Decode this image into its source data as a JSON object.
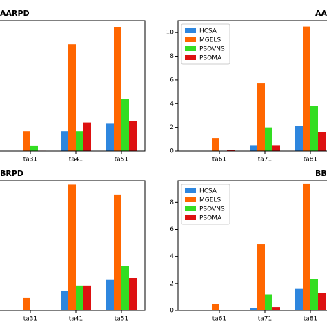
{
  "chart_data": [
    {
      "type": "bar",
      "title": "AARPD",
      "categories": [
        "ta31",
        "ta41",
        "ta51"
      ],
      "ylim": [
        0,
        10.5
      ],
      "series": [
        {
          "color": "#2e86de",
          "values": [
            0,
            1.6,
            2.2
          ]
        },
        {
          "color": "#ff6600",
          "values": [
            1.6,
            8.6,
            10
          ]
        },
        {
          "color": "#33dd22",
          "values": [
            0.45,
            1.6,
            4.2
          ]
        },
        {
          "color": "#dd1111",
          "values": [
            0.03,
            2.3,
            2.4
          ]
        }
      ]
    },
    {
      "type": "bar",
      "title": "AA",
      "categories": [
        "ta61",
        "ta71",
        "ta81"
      ],
      "ylim": [
        0,
        11
      ],
      "yticks": [
        0,
        2,
        4,
        6,
        8,
        10
      ],
      "legend": "upper left",
      "series": [
        {
          "name": "HCSA",
          "color": "#2e86de",
          "values": [
            0,
            0.5,
            2.1
          ]
        },
        {
          "name": "MGELS",
          "color": "#ff6600",
          "values": [
            1.1,
            5.7,
            10.5
          ]
        },
        {
          "name": "PSOVNS",
          "color": "#33dd22",
          "values": [
            0,
            2.0,
            3.8
          ]
        },
        {
          "name": "PSOMA",
          "color": "#dd1111",
          "values": [
            0.1,
            0.5,
            1.6
          ]
        }
      ]
    },
    {
      "type": "bar",
      "title": "BRPD",
      "categories": [
        "ta31",
        "ta41",
        "ta51"
      ],
      "ylim": [
        0,
        10.4
      ],
      "series": [
        {
          "color": "#2e86de",
          "values": [
            0,
            1.55,
            2.45
          ]
        },
        {
          "color": "#ff6600",
          "values": [
            1.0,
            10.1,
            9.3
          ]
        },
        {
          "color": "#33dd22",
          "values": [
            0,
            2.0,
            3.55
          ]
        },
        {
          "color": "#dd1111",
          "values": [
            0,
            2.0,
            2.6
          ]
        }
      ]
    },
    {
      "type": "bar",
      "title": "BB",
      "categories": [
        "ta61",
        "ta71",
        "ta81"
      ],
      "ylim": [
        0,
        9.6
      ],
      "yticks": [
        0,
        2,
        4,
        6,
        8
      ],
      "legend": "upper left",
      "series": [
        {
          "name": "HCSA",
          "color": "#2e86de",
          "values": [
            0,
            0.2,
            1.6
          ]
        },
        {
          "name": "MGELS",
          "color": "#ff6600",
          "values": [
            0.5,
            4.9,
            9.4
          ]
        },
        {
          "name": "PSOVNS",
          "color": "#33dd22",
          "values": [
            0,
            1.2,
            2.3
          ]
        },
        {
          "name": "PSOMA",
          "color": "#dd1111",
          "values": [
            0,
            0.25,
            1.3
          ]
        }
      ]
    }
  ]
}
